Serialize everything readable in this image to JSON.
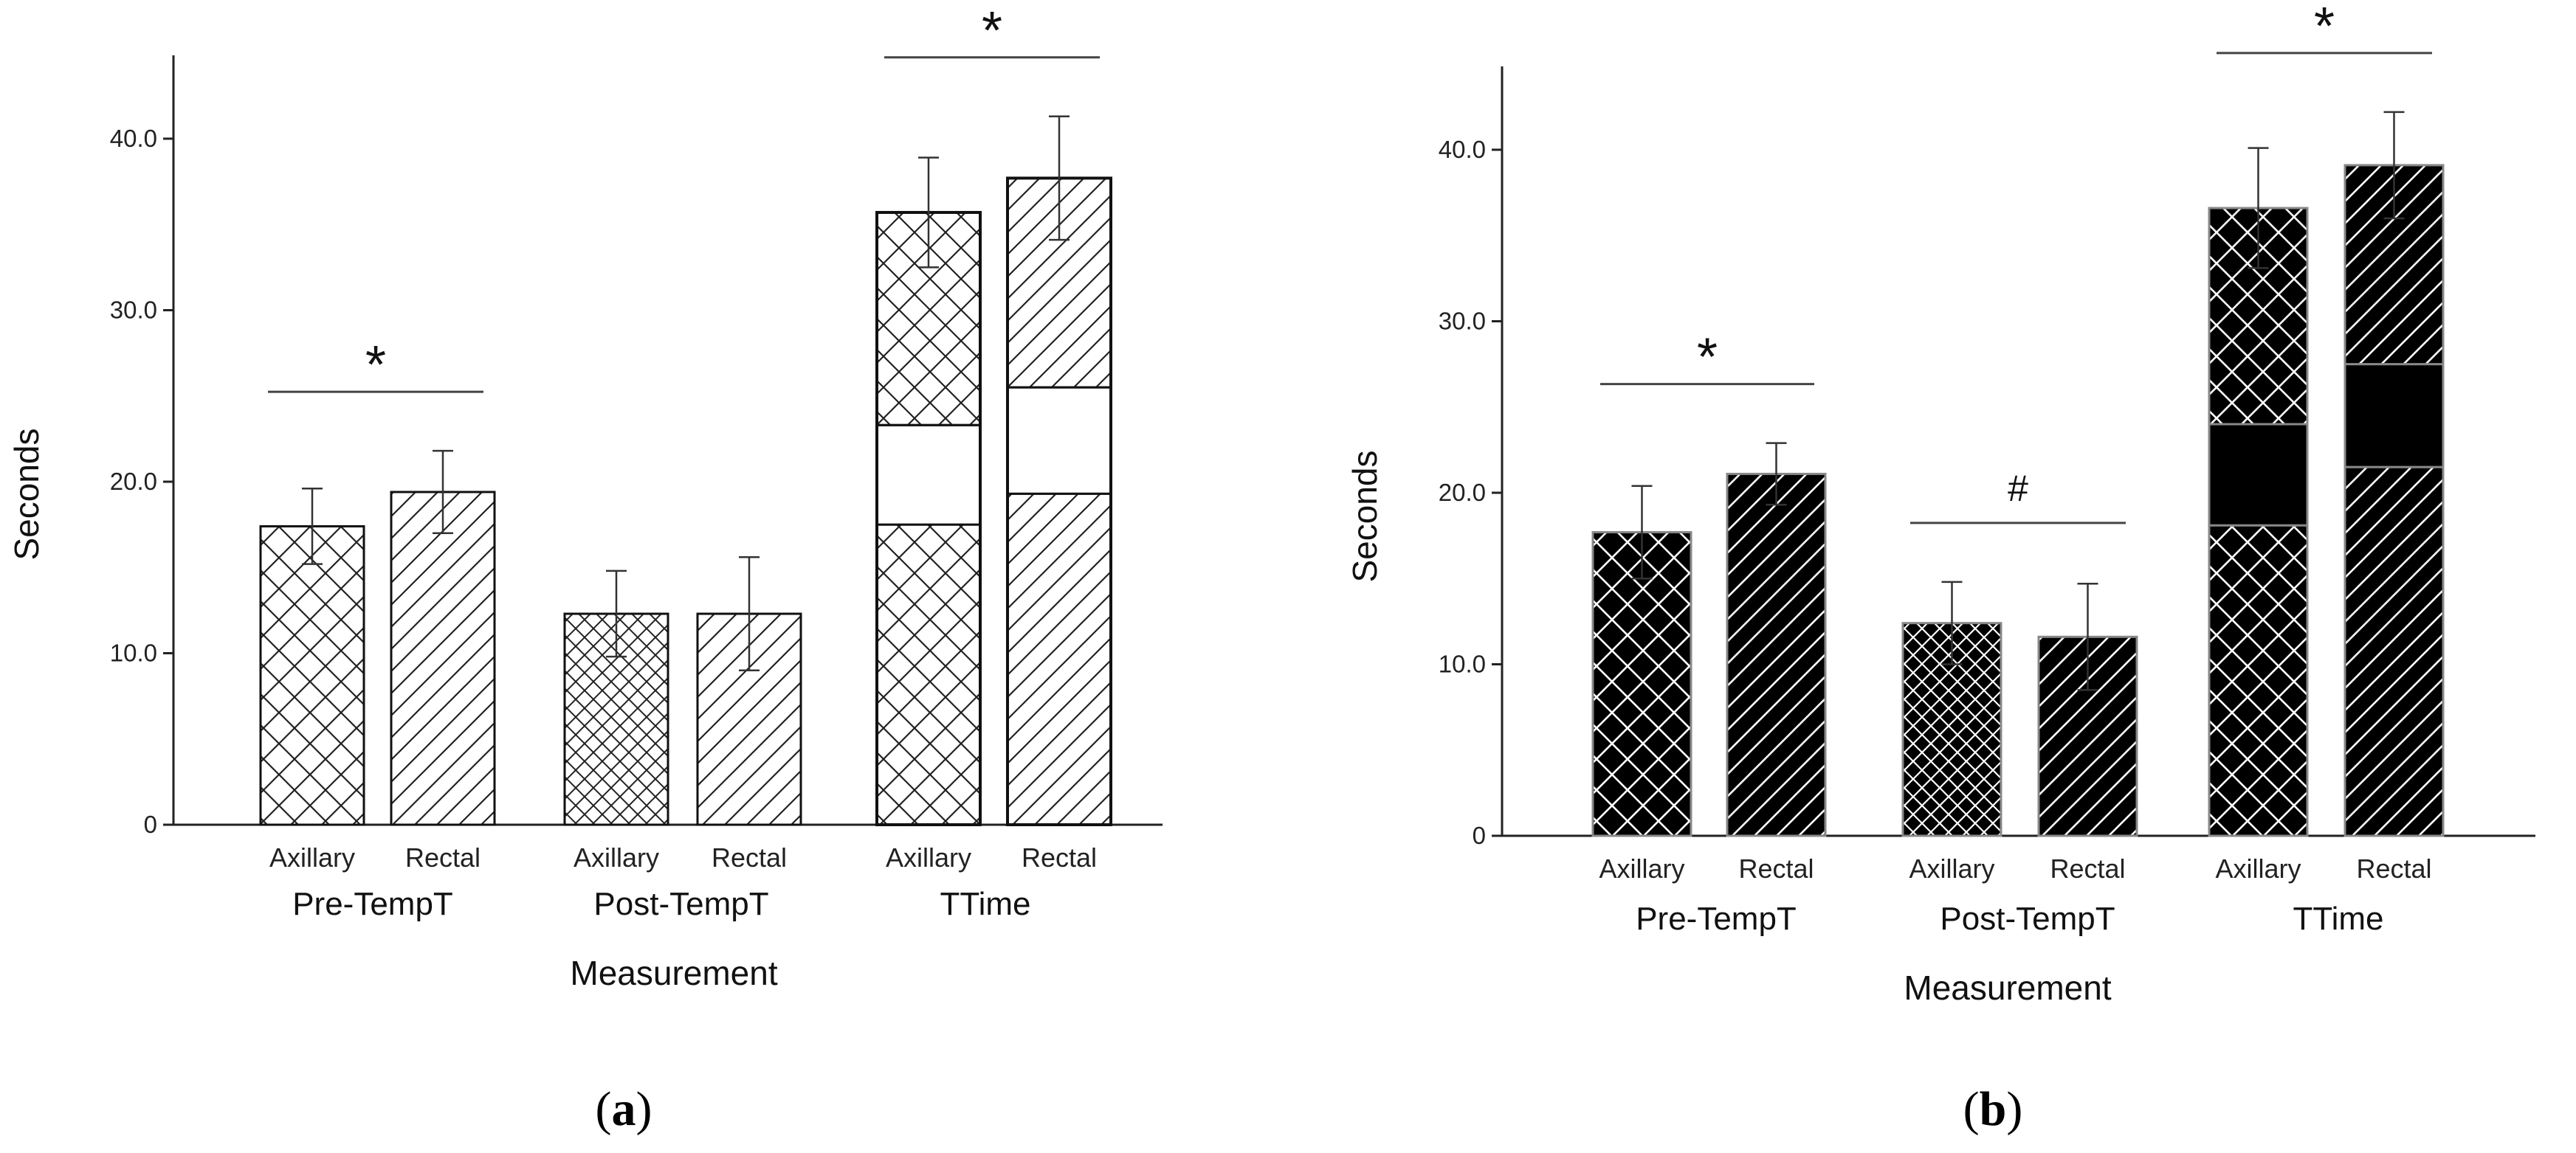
{
  "figure": {
    "panels": [
      {
        "prefix": "(",
        "letter": "a",
        "suffix": ")"
      },
      {
        "prefix": "(",
        "letter": "b",
        "suffix": ")"
      }
    ]
  },
  "chart_data": [
    {
      "type": "bar",
      "panel": "a",
      "style": "outline",
      "xlabel": "Measurement",
      "ylabel": "Seconds",
      "ylim": [
        0,
        45
      ],
      "yticks": [
        0,
        10,
        20,
        30,
        40
      ],
      "ytick_labels": [
        "0",
        "10.0",
        "20.0",
        "30.0",
        "40.0"
      ],
      "groups": [
        {
          "name": "Pre-TempT",
          "bars": [
            {
              "label": "Axillary",
              "pattern": "crosshatch",
              "value": 17.4,
              "error": 2.2
            },
            {
              "label": "Rectal",
              "pattern": "diagonal",
              "value": 19.4,
              "error": 2.4
            }
          ],
          "annotation": "*"
        },
        {
          "name": "Post-TempT",
          "bars": [
            {
              "label": "Axillary",
              "pattern": "crosshatch-fine",
              "value": 12.3,
              "error": 2.5
            },
            {
              "label": "Rectal",
              "pattern": "diagonal",
              "value": 12.3,
              "error": 3.3
            }
          ],
          "annotation": ""
        },
        {
          "name": "TTime",
          "bars": [
            {
              "label": "Axillary",
              "pattern": "crosshatch",
              "value": 35.7,
              "error": 3.2,
              "stack": [
                17.5,
                5.8,
                12.4
              ]
            },
            {
              "label": "Rectal",
              "pattern": "diagonal",
              "value": 37.7,
              "error": 3.6,
              "stack": [
                19.3,
                6.2,
                12.2
              ]
            }
          ],
          "annotation": "*"
        }
      ],
      "grid": false
    },
    {
      "type": "bar",
      "panel": "b",
      "style": "filled",
      "xlabel": "Measurement",
      "ylabel": "Seconds",
      "ylim": [
        0,
        45
      ],
      "yticks": [
        0,
        10,
        20,
        30,
        40
      ],
      "ytick_labels": [
        "0",
        "10.0",
        "20.0",
        "30.0",
        "40.0"
      ],
      "groups": [
        {
          "name": "Pre-TempT",
          "bars": [
            {
              "label": "Axillary",
              "pattern": "crosshatch",
              "value": 17.7,
              "error": 2.7
            },
            {
              "label": "Rectal",
              "pattern": "diagonal",
              "value": 21.1,
              "error": 1.8
            }
          ],
          "annotation": "*"
        },
        {
          "name": "Post-TempT",
          "bars": [
            {
              "label": "Axillary",
              "pattern": "crosshatch-fine",
              "value": 12.4,
              "error": 2.4
            },
            {
              "label": "Rectal",
              "pattern": "diagonal",
              "value": 11.6,
              "error": 3.1
            }
          ],
          "annotation": "#"
        },
        {
          "name": "TTime",
          "bars": [
            {
              "label": "Axillary",
              "pattern": "crosshatch",
              "value": 36.6,
              "error": 3.5,
              "stack": [
                18.1,
                5.9,
                12.6
              ]
            },
            {
              "label": "Rectal",
              "pattern": "diagonal",
              "value": 39.1,
              "error": 3.1,
              "stack": [
                21.5,
                6.0,
                11.6
              ]
            }
          ],
          "annotation": "*"
        }
      ],
      "grid": false
    }
  ]
}
